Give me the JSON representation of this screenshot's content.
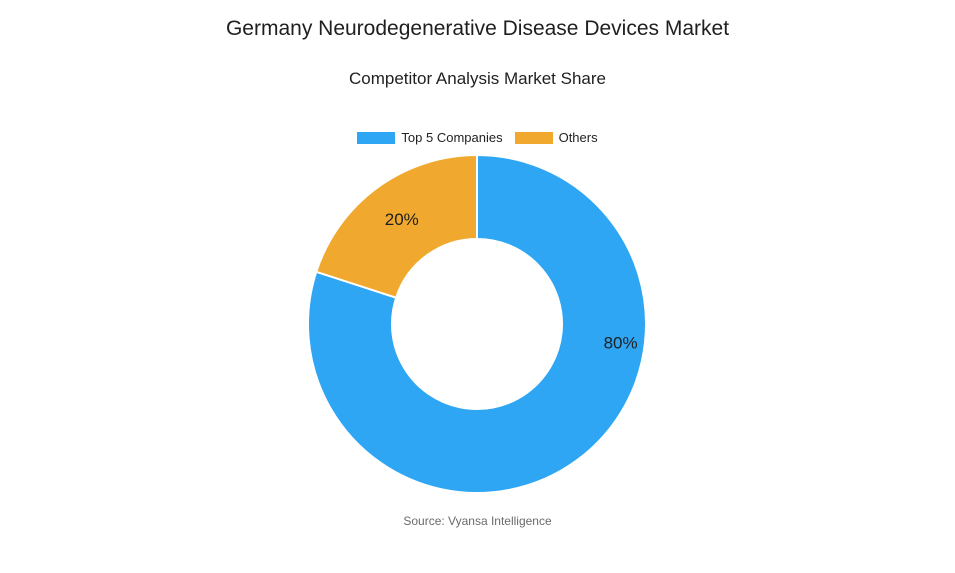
{
  "chart_data": {
    "type": "pie",
    "title": "Germany Neurodegenerative Disease Devices Market",
    "subtitle": "Competitor Analysis Market Share",
    "legend_position": "top",
    "donut": true,
    "series": [
      {
        "name": "Top 5 Companies",
        "value": 80,
        "label": "80%",
        "color": "#2ea6f3"
      },
      {
        "name": "Others",
        "value": 20,
        "label": "20%",
        "color": "#f0a92e"
      }
    ]
  },
  "source": "Source: Vyansa Intelligence"
}
